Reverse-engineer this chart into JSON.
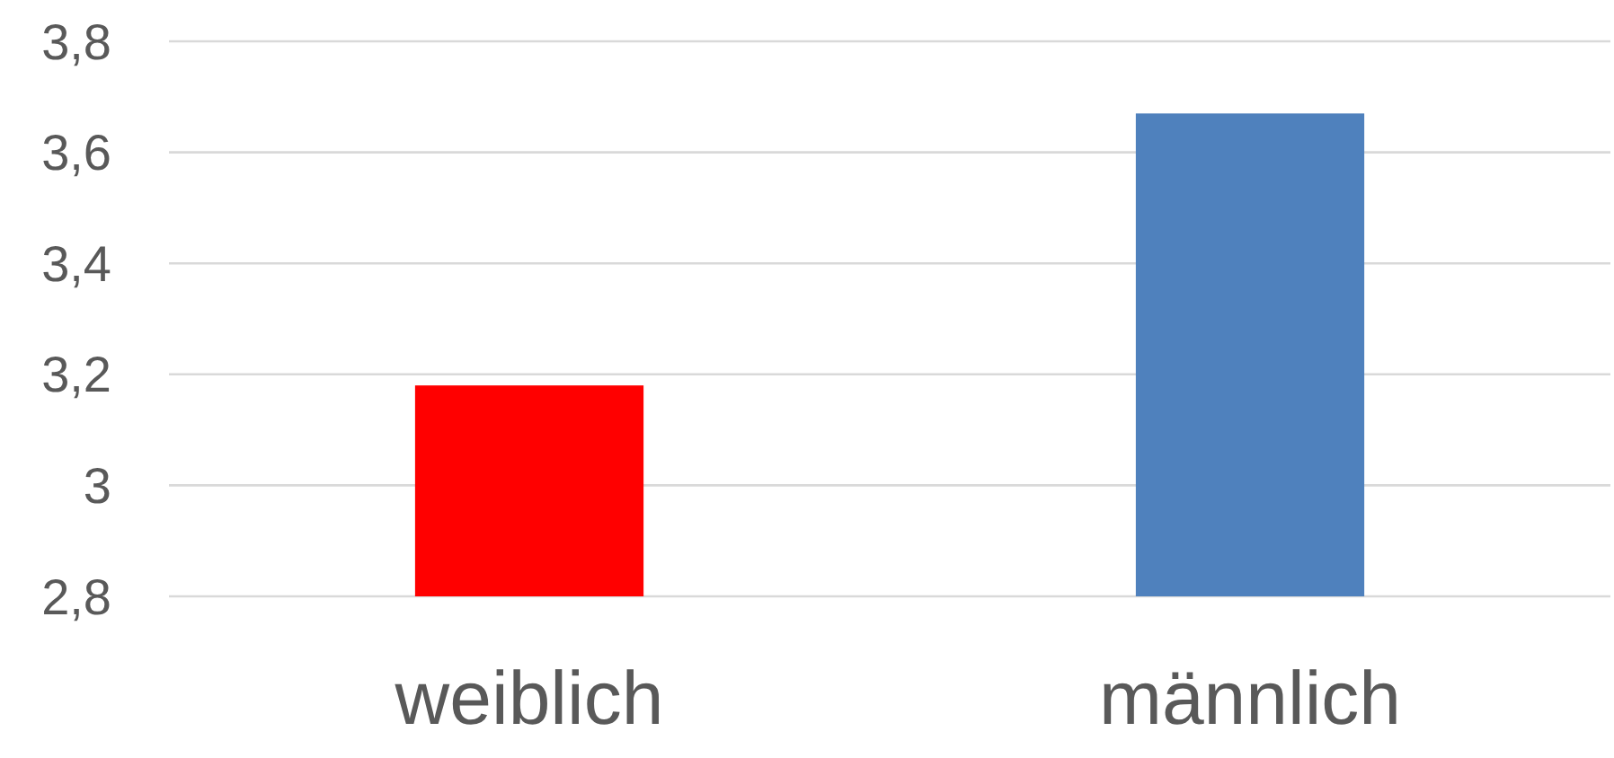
{
  "chart_data": {
    "type": "bar",
    "categories": [
      "weiblich",
      "männlich"
    ],
    "values": [
      3.18,
      3.67
    ],
    "colors": [
      "#ff0000",
      "#4f81bd"
    ],
    "ylim": [
      2.8,
      3.8
    ],
    "yticks": [
      {
        "value": 2.8,
        "label": "2,8"
      },
      3,
      {
        "value": 3.2,
        "label": "3,2"
      },
      {
        "value": 3.4,
        "label": "3,4"
      },
      {
        "value": 3.6,
        "label": "3,6"
      },
      {
        "value": 3.8,
        "label": "3,8"
      }
    ],
    "grid": "y"
  }
}
